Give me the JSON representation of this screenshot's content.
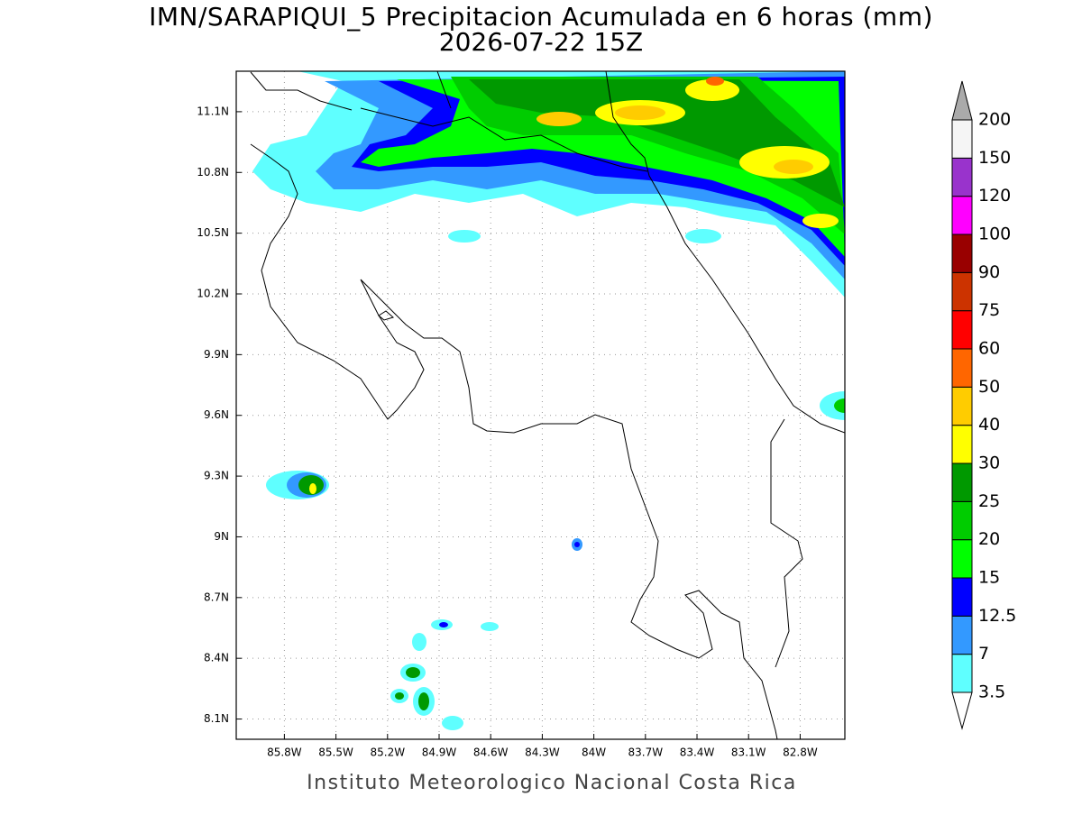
{
  "title": "IMN/SARAPIQUI_5 Precipitacion Acumulada en 6 horas (mm)",
  "subtitle": "2026-07-22 15Z",
  "footer": "Instituto Meteorologico Nacional Costa Rica",
  "map": {
    "xlim": [
      -86.08,
      -82.54
    ],
    "ylim": [
      8.0,
      11.3
    ],
    "grid": true,
    "xticks": [
      {
        "value": -85.8,
        "label": "85.8W"
      },
      {
        "value": -85.5,
        "label": "85.5W"
      },
      {
        "value": -85.2,
        "label": "85.2W"
      },
      {
        "value": -84.9,
        "label": "84.9W"
      },
      {
        "value": -84.6,
        "label": "84.6W"
      },
      {
        "value": -84.3,
        "label": "84.3W"
      },
      {
        "value": -84.0,
        "label": "84W"
      },
      {
        "value": -83.7,
        "label": "83.7W"
      },
      {
        "value": -83.4,
        "label": "83.4W"
      },
      {
        "value": -83.1,
        "label": "83.1W"
      },
      {
        "value": -82.8,
        "label": "82.8W"
      }
    ],
    "yticks": [
      {
        "value": 8.1,
        "label": "8.1N"
      },
      {
        "value": 8.4,
        "label": "8.4N"
      },
      {
        "value": 8.7,
        "label": "8.7N"
      },
      {
        "value": 9.0,
        "label": "9N"
      },
      {
        "value": 9.3,
        "label": "9.3N"
      },
      {
        "value": 9.6,
        "label": "9.6N"
      },
      {
        "value": 9.9,
        "label": "9.9N"
      },
      {
        "value": 10.2,
        "label": "10.2N"
      },
      {
        "value": 10.5,
        "label": "10.5N"
      },
      {
        "value": 10.8,
        "label": "10.8N"
      },
      {
        "value": 11.1,
        "label": "11.1N"
      }
    ]
  },
  "colorbar": {
    "levels": [
      3.5,
      7,
      12.5,
      15,
      20,
      25,
      30,
      40,
      50,
      60,
      75,
      90,
      100,
      120,
      150,
      200
    ],
    "colors": [
      "#5fffff",
      "#3399ff",
      "#0000ff",
      "#00ff00",
      "#00cc00",
      "#009900",
      "#ffff00",
      "#ffcc00",
      "#ff6600",
      "#ff0000",
      "#cc3300",
      "#990000",
      "#ff00ff",
      "#9933cc",
      "#f5f5f5"
    ],
    "under_color": "#ffffff",
    "over_color": "#aaaaaa"
  }
}
